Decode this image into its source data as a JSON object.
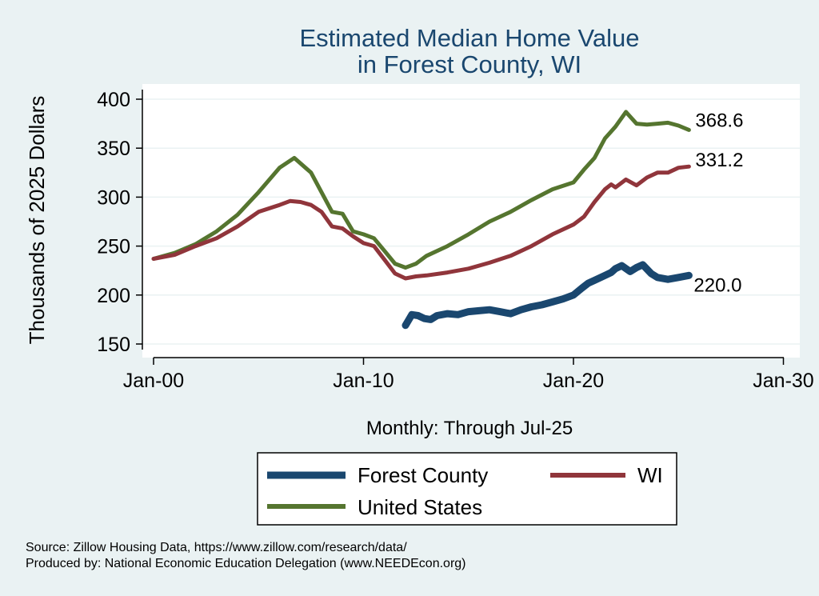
{
  "chart_data": {
    "type": "line",
    "title": [
      "Estimated Median Home Value",
      "in Forest County, WI"
    ],
    "ylabel": "Thousands of 2025 Dollars",
    "xlabel": "Monthly: Through Jul-25",
    "ylim": [
      140,
      410
    ],
    "xlim": [
      1999.5,
      2030.2
    ],
    "yticks": [
      150,
      200,
      250,
      300,
      350,
      400
    ],
    "xticks": [
      {
        "value": 2000,
        "label": "Jan-00"
      },
      {
        "value": 2010,
        "label": "Jan-10"
      },
      {
        "value": 2020,
        "label": "Jan-20"
      },
      {
        "value": 2030,
        "label": "Jan-30"
      }
    ],
    "grid": true,
    "legend_position": "bottom",
    "series": [
      {
        "name": "Forest County",
        "color": "#1a476f",
        "end_label": "220.0",
        "x": [
          2012.0,
          2012.3,
          2012.6,
          2012.9,
          2013.2,
          2013.5,
          2014.0,
          2014.5,
          2015.0,
          2015.5,
          2016.0,
          2016.5,
          2017.0,
          2017.5,
          2018.0,
          2018.5,
          2019.0,
          2019.5,
          2020.0,
          2020.4,
          2020.7,
          2021.0,
          2021.5,
          2021.8,
          2022.0,
          2022.3,
          2022.7,
          2023.0,
          2023.3,
          2023.7,
          2024.0,
          2024.5,
          2025.0,
          2025.5
        ],
        "y": [
          169,
          180,
          179,
          176,
          175,
          179,
          181,
          180,
          183,
          184,
          185,
          183,
          181,
          185,
          188,
          190,
          193,
          196,
          200,
          207,
          212,
          215,
          220,
          223,
          227,
          230,
          224,
          228,
          231,
          222,
          218,
          216,
          218,
          220
        ]
      },
      {
        "name": "WI",
        "color": "#90353b",
        "end_label": "331.2",
        "x": [
          2000,
          2001,
          2002,
          2003,
          2004,
          2005,
          2006,
          2006.5,
          2007,
          2007.5,
          2008,
          2008.5,
          2009,
          2009.5,
          2010,
          2010.5,
          2011,
          2011.5,
          2012,
          2012.5,
          2013,
          2014,
          2015,
          2016,
          2017,
          2018,
          2019,
          2020,
          2020.5,
          2021,
          2021.5,
          2021.8,
          2022,
          2022.5,
          2023,
          2023.5,
          2024,
          2024.5,
          2025,
          2025.5
        ],
        "y": [
          237,
          241,
          250,
          258,
          270,
          285,
          292,
          296,
          295,
          292,
          285,
          270,
          268,
          260,
          253,
          250,
          236,
          222,
          217,
          219,
          220,
          223,
          227,
          233,
          240,
          250,
          262,
          272,
          280,
          295,
          308,
          313,
          310,
          318,
          312,
          320,
          325,
          325,
          330,
          331.2
        ]
      },
      {
        "name": "United States",
        "color": "#55752f",
        "end_label": "368.6",
        "x": [
          2000,
          2001,
          2002,
          2003,
          2004,
          2005,
          2006,
          2006.7,
          2007.5,
          2008,
          2008.5,
          2009,
          2009.5,
          2010,
          2010.5,
          2011,
          2011.5,
          2012,
          2012.5,
          2013,
          2014,
          2015,
          2016,
          2017,
          2018,
          2019,
          2020,
          2020.5,
          2021,
          2021.5,
          2022,
          2022.5,
          2023,
          2023.5,
          2024,
          2024.5,
          2025,
          2025.5
        ],
        "y": [
          237,
          243,
          252,
          265,
          282,
          305,
          330,
          340,
          325,
          305,
          285,
          283,
          265,
          262,
          258,
          245,
          232,
          228,
          232,
          240,
          250,
          262,
          275,
          285,
          297,
          308,
          315,
          328,
          340,
          360,
          372,
          387,
          375,
          374,
          375,
          376,
          373,
          368.6
        ]
      }
    ],
    "legend_order": [
      0,
      1,
      2
    ]
  },
  "notes": {
    "source": "Source: Zillow Housing Data, https://www.zillow.com/research/data/",
    "produced": "Produced by: National Economic Education Delegation (www.NEEDEcon.org)"
  }
}
